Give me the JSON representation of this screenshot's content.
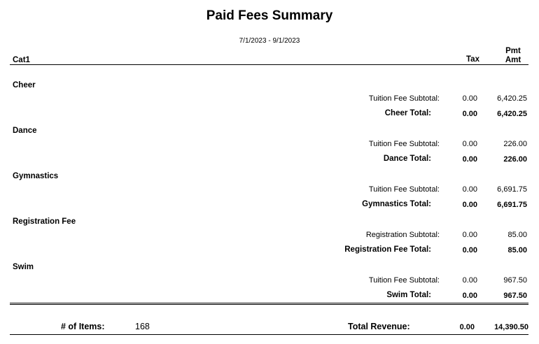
{
  "report": {
    "title": "Paid Fees Summary",
    "date_range": "7/1/2023 - 9/1/2023"
  },
  "columns": {
    "category": "Cat1",
    "tax": "Tax",
    "pmt_line1": "Pmt",
    "pmt_line2": "Amt"
  },
  "groups": [
    {
      "name": "Cheer",
      "subtotal_label": "Tuition Fee Subtotal:",
      "subtotal_tax": "0.00",
      "subtotal_amt": "6,420.25",
      "total_label": "Cheer Total:",
      "total_tax": "0.00",
      "total_amt": "6,420.25"
    },
    {
      "name": "Dance",
      "subtotal_label": "Tuition Fee Subtotal:",
      "subtotal_tax": "0.00",
      "subtotal_amt": "226.00",
      "total_label": "Dance Total:",
      "total_tax": "0.00",
      "total_amt": "226.00"
    },
    {
      "name": "Gymnastics",
      "subtotal_label": "Tuition Fee Subtotal:",
      "subtotal_tax": "0.00",
      "subtotal_amt": "6,691.75",
      "total_label": "Gymnastics Total:",
      "total_tax": "0.00",
      "total_amt": "6,691.75"
    },
    {
      "name": "Registration Fee",
      "subtotal_label": "Registration Subtotal:",
      "subtotal_tax": "0.00",
      "subtotal_amt": "85.00",
      "total_label": "Registration Fee Total:",
      "total_tax": "0.00",
      "total_amt": "85.00"
    },
    {
      "name": "Swim",
      "subtotal_label": "Tuition Fee Subtotal:",
      "subtotal_tax": "0.00",
      "subtotal_amt": "967.50",
      "total_label": "Swim Total:",
      "total_tax": "0.00",
      "total_amt": "967.50"
    }
  ],
  "footer": {
    "items_label": "# of Items:",
    "items_count": "168",
    "revenue_label": "Total Revenue:",
    "revenue_tax": "0.00",
    "revenue_amt": "14,390.50"
  }
}
